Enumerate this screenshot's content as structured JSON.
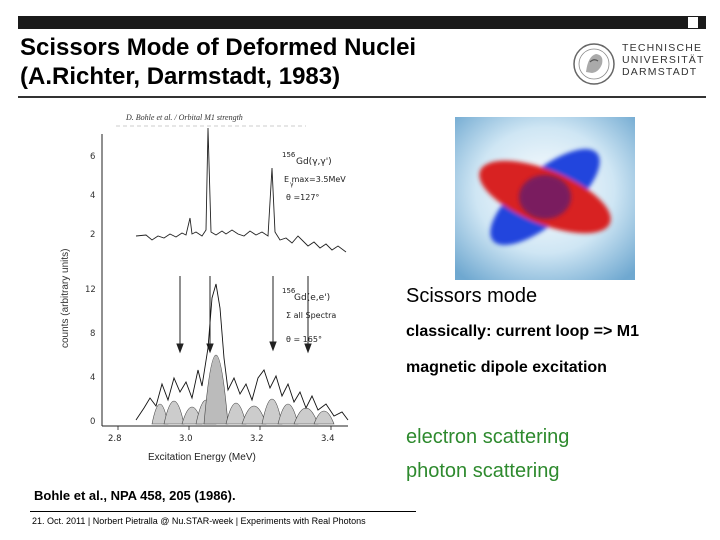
{
  "title_line1": "Scissors Mode of Deformed Nuclei",
  "title_line2": "(A.Richter, Darmstadt, 1983)",
  "logo": {
    "icon": "university-seal-icon",
    "lines": [
      "TECHNISCHE",
      "UNIVERSITÄT",
      "DARMSTADT"
    ]
  },
  "figure": {
    "header": "D. Bohle et al. / Orbital M1 strength",
    "ylabel": "counts (arbitrary units)",
    "xlabel": "Excitation Energy (MeV)",
    "x_ticks": [
      "2.8",
      "3.0",
      "3.2",
      "3.4"
    ],
    "upper_panel": {
      "ticks": [
        "6",
        "4",
        "2"
      ],
      "label_mass": "156",
      "label_reaction": "Gd(γ,γ')",
      "label_emax": "E  max=3.5MeV",
      "label_emax_sub": "γ",
      "label_theta": "θ   =127°"
    },
    "lower_panel": {
      "ticks": [
        "12",
        "8",
        "4",
        "0"
      ],
      "label_mass": "156",
      "label_reaction": "Gd(e,e')",
      "label_sum": "Σ all Spectra",
      "label_theta": "θ   = 165°"
    }
  },
  "glow_image": {
    "colors": {
      "red": "#d82020",
      "blue": "#2244dd",
      "overlap": "#6a1a6a"
    }
  },
  "text": {
    "scissors_mode": "Scissors mode",
    "classically": "classically: current loop => M1",
    "magnetic": "magnetic dipole excitation",
    "electron": "electron scattering",
    "photon": "photon scattering",
    "accent_color": "#2e8a2e"
  },
  "reference": "Bohle et al., NPA 458, 205 (1986).",
  "footer": "21. Oct. 2011 | Norbert Pietralla @ Nu.STAR-week | Experiments with Real Photons"
}
